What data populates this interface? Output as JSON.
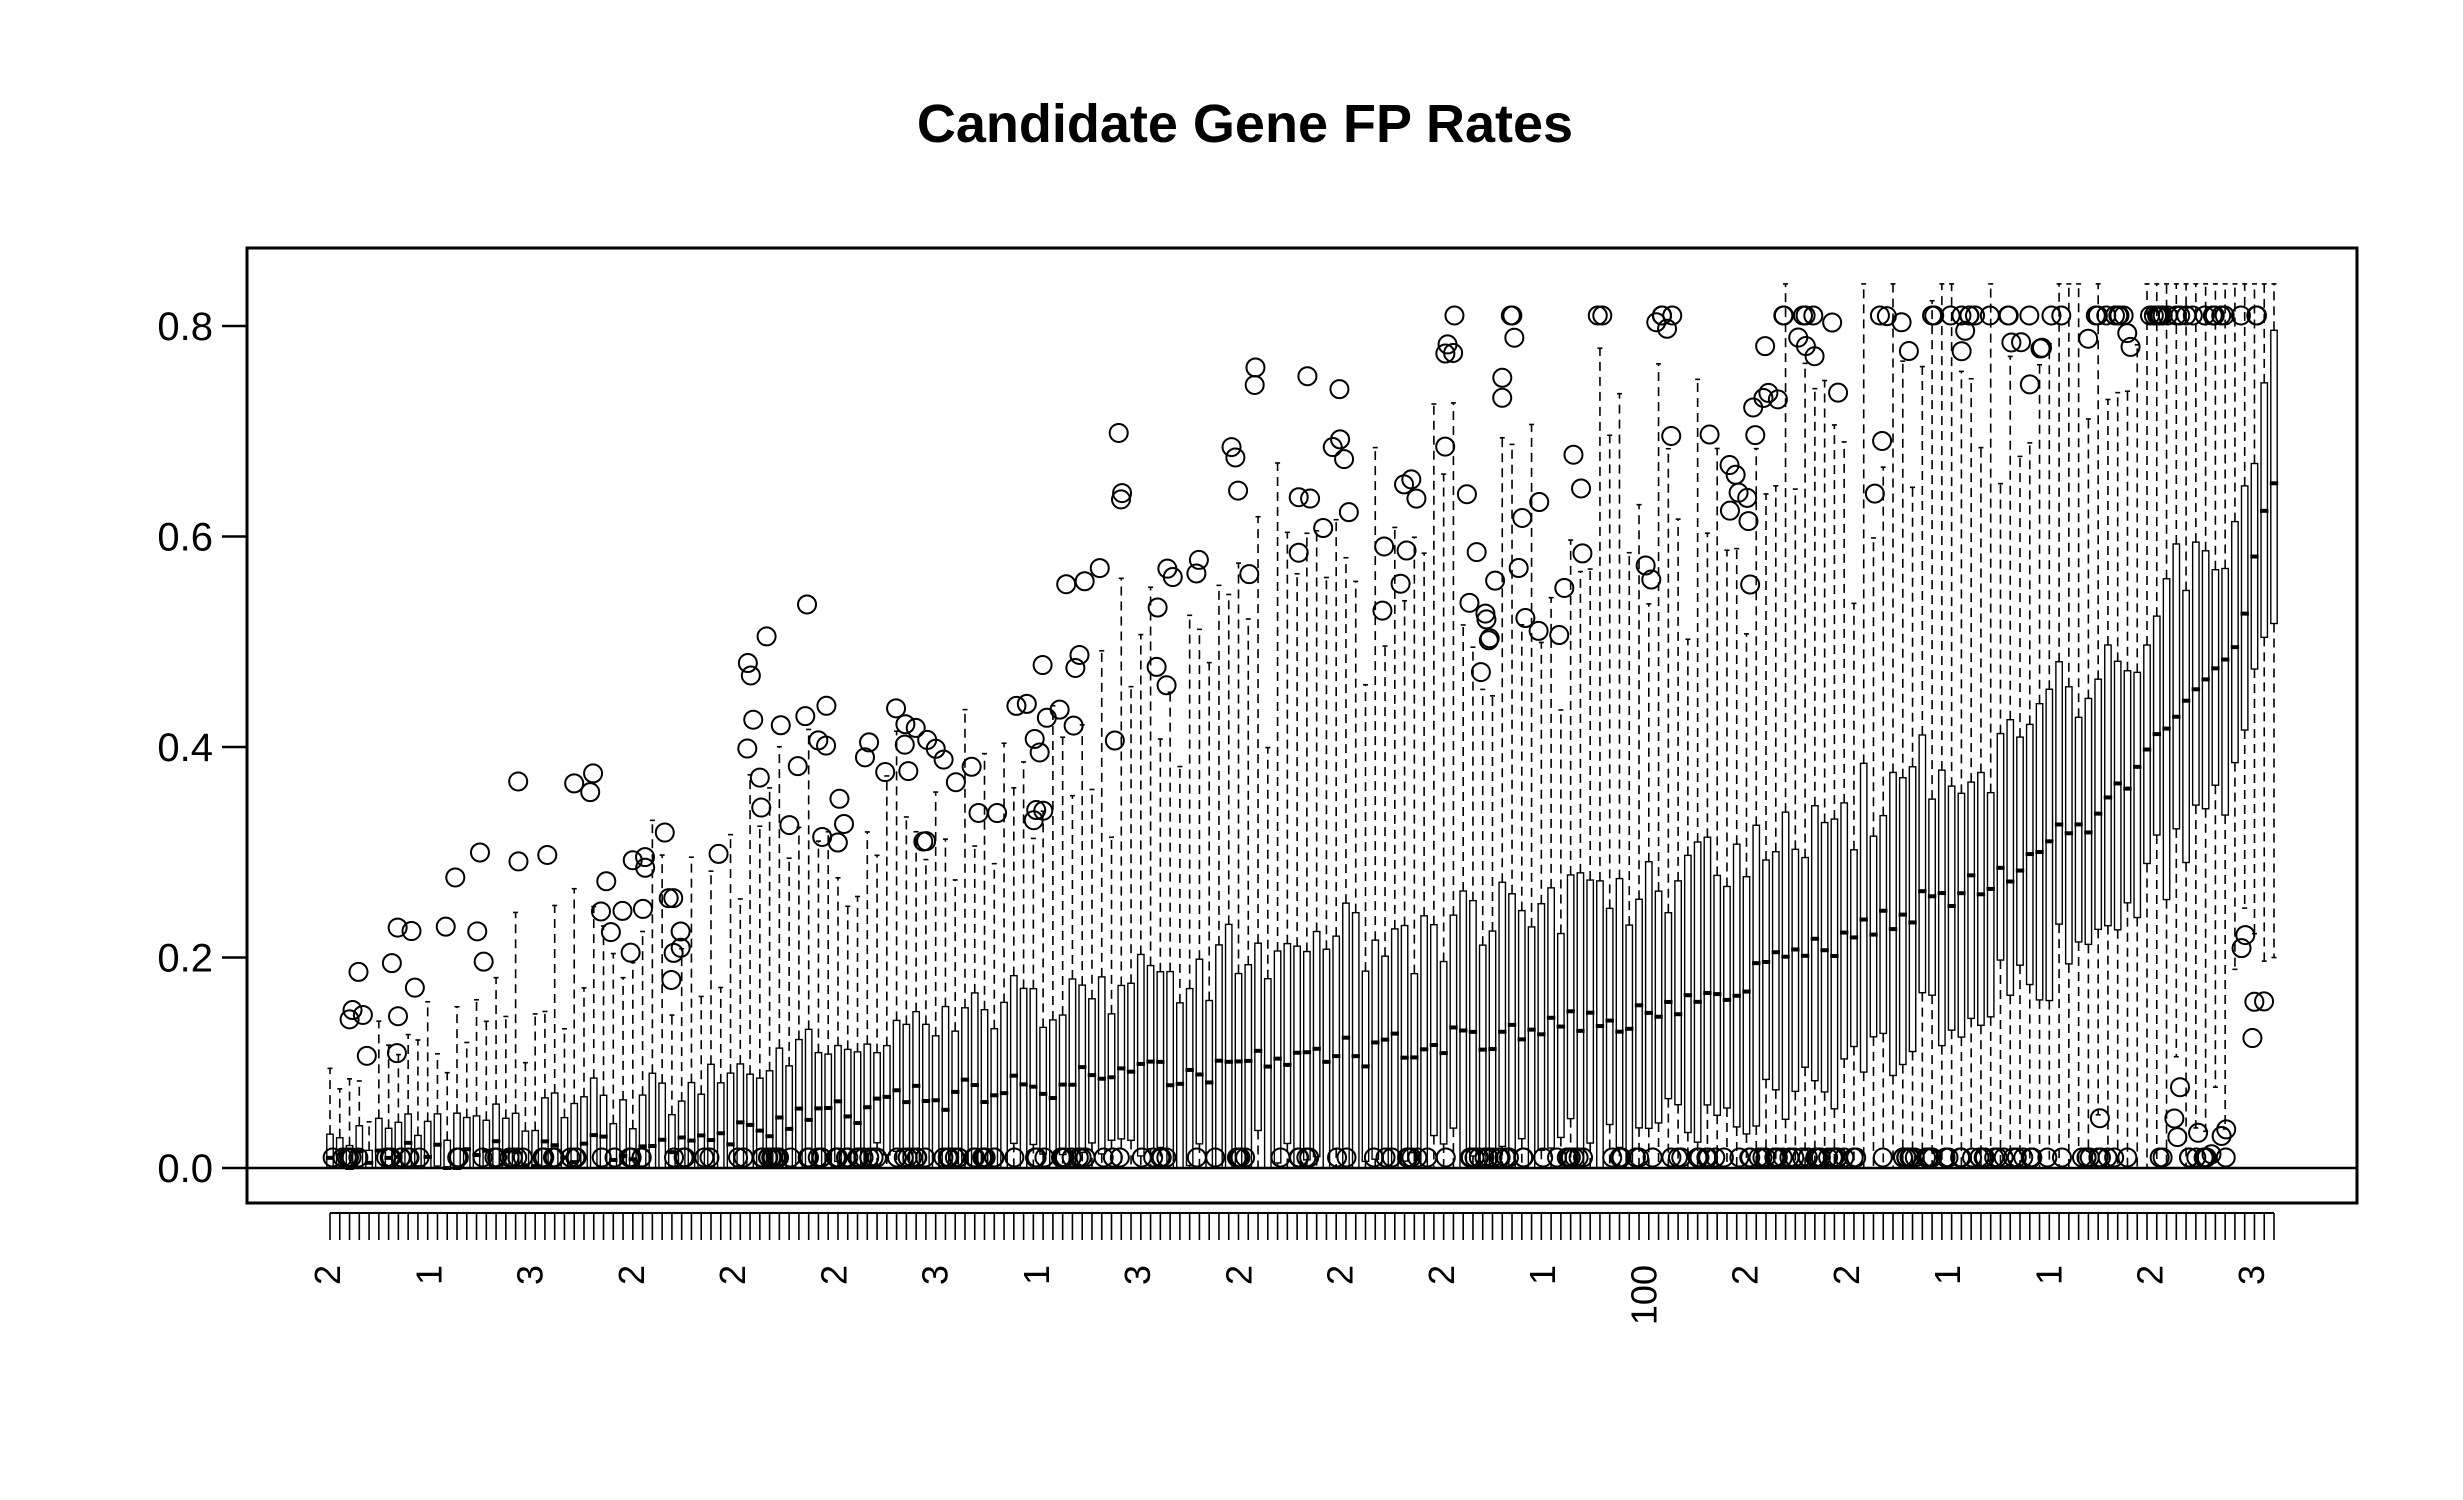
{
  "chart_data": {
    "type": "boxplot",
    "title": "Candidate Gene FP Rates",
    "xlabel": "",
    "ylabel": "",
    "ylim": [
      0.0,
      0.85
    ],
    "yticks": [
      0.0,
      0.2,
      0.4,
      0.6,
      0.8
    ],
    "ytick_labels": [
      "0.0",
      "0.2",
      "0.4",
      "0.6",
      "0.8"
    ],
    "n_boxes": 200,
    "reference_line": 0.0,
    "median_anchors": [
      [
        0,
        0.005
      ],
      [
        10,
        0.01
      ],
      [
        20,
        0.015
      ],
      [
        30,
        0.02
      ],
      [
        40,
        0.03
      ],
      [
        50,
        0.05
      ],
      [
        60,
        0.065
      ],
      [
        70,
        0.075
      ],
      [
        80,
        0.085
      ],
      [
        90,
        0.09
      ],
      [
        100,
        0.105
      ],
      [
        110,
        0.115
      ],
      [
        120,
        0.125
      ],
      [
        130,
        0.14
      ],
      [
        140,
        0.16
      ],
      [
        150,
        0.2
      ],
      [
        160,
        0.24
      ],
      [
        170,
        0.27
      ],
      [
        180,
        0.33
      ],
      [
        190,
        0.43
      ],
      [
        196,
        0.52
      ],
      [
        199,
        0.66
      ]
    ],
    "overlapping_tick_labels_visible": [
      "2",
      "1",
      "3",
      "2",
      "2",
      "2",
      "3",
      "1",
      "3",
      "2",
      "2",
      "2",
      "1",
      "100",
      "2",
      "2",
      "1",
      "1",
      "2",
      "3"
    ]
  }
}
